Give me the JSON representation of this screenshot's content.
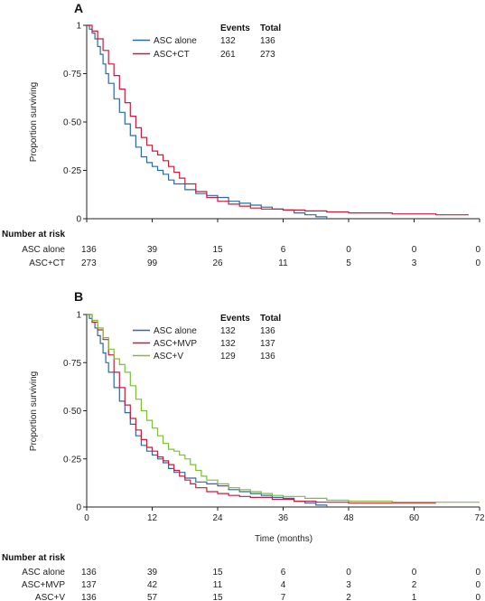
{
  "chart_data": [
    {
      "type": "line",
      "panel": "A",
      "ylabel": "Proportion surviving",
      "ylim": [
        0,
        1
      ],
      "yticks": [
        "0",
        "0·25",
        "0·50",
        "0·75",
        "1"
      ],
      "xlim": [
        0,
        72
      ],
      "legend_headers": [
        "Events",
        "Total"
      ],
      "series": [
        {
          "name": "ASC alone",
          "color": "#2b6aa6",
          "events": "132",
          "total": "136",
          "points": [
            [
              0,
              1
            ],
            [
              0.5,
              0.98
            ],
            [
              1,
              0.96
            ],
            [
              1.5,
              0.93
            ],
            [
              2,
              0.89
            ],
            [
              2.5,
              0.85
            ],
            [
              3,
              0.8
            ],
            [
              3.5,
              0.75
            ],
            [
              4,
              0.7
            ],
            [
              5,
              0.62
            ],
            [
              6,
              0.55
            ],
            [
              7,
              0.49
            ],
            [
              8,
              0.43
            ],
            [
              9,
              0.37
            ],
            [
              10,
              0.32
            ],
            [
              11,
              0.29
            ],
            [
              12,
              0.27
            ],
            [
              13,
              0.25
            ],
            [
              14,
              0.23
            ],
            [
              15,
              0.2
            ],
            [
              16,
              0.18
            ],
            [
              18,
              0.15
            ],
            [
              20,
              0.13
            ],
            [
              22,
              0.12
            ],
            [
              24,
              0.11
            ],
            [
              26,
              0.09
            ],
            [
              28,
              0.08
            ],
            [
              30,
              0.07
            ],
            [
              32,
              0.06
            ],
            [
              34,
              0.05
            ],
            [
              36,
              0.045
            ],
            [
              38,
              0.03
            ],
            [
              40,
              0.02
            ],
            [
              42,
              0.01
            ],
            [
              44,
              0
            ]
          ]
        },
        {
          "name": "ASC+CT",
          "color": "#c01f3e",
          "events": "261",
          "total": "273",
          "points": [
            [
              0,
              1
            ],
            [
              1,
              0.97
            ],
            [
              2,
              0.93
            ],
            [
              3,
              0.87
            ],
            [
              4,
              0.8
            ],
            [
              5,
              0.74
            ],
            [
              6,
              0.67
            ],
            [
              7,
              0.6
            ],
            [
              8,
              0.53
            ],
            [
              9,
              0.47
            ],
            [
              10,
              0.42
            ],
            [
              11,
              0.38
            ],
            [
              12,
              0.35
            ],
            [
              13,
              0.33
            ],
            [
              14,
              0.3
            ],
            [
              15,
              0.27
            ],
            [
              16,
              0.24
            ],
            [
              17,
              0.21
            ],
            [
              18,
              0.18
            ],
            [
              20,
              0.14
            ],
            [
              22,
              0.11
            ],
            [
              24,
              0.09
            ],
            [
              26,
              0.075
            ],
            [
              28,
              0.065
            ],
            [
              30,
              0.055
            ],
            [
              32,
              0.05
            ],
            [
              36,
              0.045
            ],
            [
              40,
              0.04
            ],
            [
              44,
              0.035
            ],
            [
              48,
              0.03
            ],
            [
              56,
              0.025
            ],
            [
              64,
              0.02
            ],
            [
              70,
              0.02
            ]
          ]
        }
      ],
      "risk_header": "Number at risk",
      "risk_table": [
        {
          "label": "ASC alone",
          "values": [
            "136",
            "39",
            "15",
            "6",
            "0",
            "0",
            "0"
          ]
        },
        {
          "label": "ASC+CT",
          "values": [
            "273",
            "99",
            "26",
            "11",
            "5",
            "3",
            "0"
          ]
        }
      ]
    },
    {
      "type": "line",
      "panel": "B",
      "ylabel": "Proportion surviving",
      "xlabel": "Time (months)",
      "ylim": [
        0,
        1
      ],
      "yticks": [
        "0",
        "0·25",
        "0·50",
        "0·75",
        "1"
      ],
      "xlim": [
        0,
        72
      ],
      "xticks": [
        "0",
        "12",
        "24",
        "36",
        "48",
        "60",
        "72"
      ],
      "legend_headers": [
        "Events",
        "Total"
      ],
      "series": [
        {
          "name": "ASC alone",
          "color": "#2b6aa6",
          "events": "132",
          "total": "136",
          "points": [
            [
              0,
              1
            ],
            [
              0.5,
              0.98
            ],
            [
              1,
              0.96
            ],
            [
              1.5,
              0.93
            ],
            [
              2,
              0.89
            ],
            [
              2.5,
              0.85
            ],
            [
              3,
              0.8
            ],
            [
              3.5,
              0.75
            ],
            [
              4,
              0.7
            ],
            [
              5,
              0.62
            ],
            [
              6,
              0.55
            ],
            [
              7,
              0.49
            ],
            [
              8,
              0.43
            ],
            [
              9,
              0.37
            ],
            [
              10,
              0.32
            ],
            [
              11,
              0.29
            ],
            [
              12,
              0.27
            ],
            [
              13,
              0.25
            ],
            [
              14,
              0.23
            ],
            [
              15,
              0.2
            ],
            [
              16,
              0.18
            ],
            [
              18,
              0.15
            ],
            [
              20,
              0.13
            ],
            [
              22,
              0.12
            ],
            [
              24,
              0.11
            ],
            [
              26,
              0.09
            ],
            [
              28,
              0.08
            ],
            [
              30,
              0.07
            ],
            [
              32,
              0.06
            ],
            [
              34,
              0.05
            ],
            [
              36,
              0.045
            ],
            [
              38,
              0.03
            ],
            [
              40,
              0.02
            ],
            [
              42,
              0.01
            ],
            [
              44,
              0
            ]
          ]
        },
        {
          "name": "ASC+MVP",
          "color": "#c01f3e",
          "events": "132",
          "total": "137",
          "points": [
            [
              0,
              1
            ],
            [
              1,
              0.96
            ],
            [
              2,
              0.92
            ],
            [
              3,
              0.87
            ],
            [
              4,
              0.79
            ],
            [
              5,
              0.7
            ],
            [
              6,
              0.62
            ],
            [
              7,
              0.53
            ],
            [
              8,
              0.46
            ],
            [
              9,
              0.4
            ],
            [
              10,
              0.35
            ],
            [
              11,
              0.31
            ],
            [
              12,
              0.29
            ],
            [
              13,
              0.26
            ],
            [
              14,
              0.24
            ],
            [
              15,
              0.22
            ],
            [
              16,
              0.19
            ],
            [
              17,
              0.16
            ],
            [
              18,
              0.14
            ],
            [
              19,
              0.12
            ],
            [
              20,
              0.1
            ],
            [
              22,
              0.08
            ],
            [
              24,
              0.07
            ],
            [
              26,
              0.06
            ],
            [
              28,
              0.055
            ],
            [
              30,
              0.05
            ],
            [
              34,
              0.04
            ],
            [
              38,
              0.03
            ],
            [
              42,
              0.025
            ],
            [
              48,
              0.02
            ],
            [
              56,
              0.02
            ],
            [
              64,
              0.02
            ]
          ]
        },
        {
          "name": "ASC+V",
          "color": "#7cbd3c",
          "events": "129",
          "total": "136",
          "points": [
            [
              0,
              1
            ],
            [
              1,
              0.97
            ],
            [
              2,
              0.93
            ],
            [
              3,
              0.88
            ],
            [
              4,
              0.82
            ],
            [
              5,
              0.77
            ],
            [
              6,
              0.74
            ],
            [
              7,
              0.7
            ],
            [
              8,
              0.63
            ],
            [
              9,
              0.56
            ],
            [
              10,
              0.5
            ],
            [
              11,
              0.45
            ],
            [
              12,
              0.41
            ],
            [
              13,
              0.37
            ],
            [
              14,
              0.33
            ],
            [
              15,
              0.3
            ],
            [
              16,
              0.29
            ],
            [
              17,
              0.27
            ],
            [
              18,
              0.25
            ],
            [
              19,
              0.22
            ],
            [
              20,
              0.19
            ],
            [
              21,
              0.16
            ],
            [
              22,
              0.14
            ],
            [
              24,
              0.12
            ],
            [
              26,
              0.1
            ],
            [
              28,
              0.09
            ],
            [
              30,
              0.08
            ],
            [
              32,
              0.07
            ],
            [
              34,
              0.06
            ],
            [
              36,
              0.055
            ],
            [
              40,
              0.045
            ],
            [
              44,
              0.035
            ],
            [
              48,
              0.03
            ],
            [
              56,
              0.025
            ],
            [
              64,
              0.025
            ],
            [
              72,
              0.025
            ]
          ]
        }
      ],
      "risk_header": "Number at risk",
      "risk_table": [
        {
          "label": "ASC alone",
          "values": [
            "136",
            "39",
            "15",
            "6",
            "0",
            "0",
            "0"
          ]
        },
        {
          "label": "ASC+MVP",
          "values": [
            "137",
            "42",
            "11",
            "4",
            "3",
            "2",
            "0"
          ]
        },
        {
          "label": "ASC+V",
          "values": [
            "136",
            "57",
            "15",
            "7",
            "2",
            "1",
            "0"
          ]
        }
      ]
    }
  ]
}
